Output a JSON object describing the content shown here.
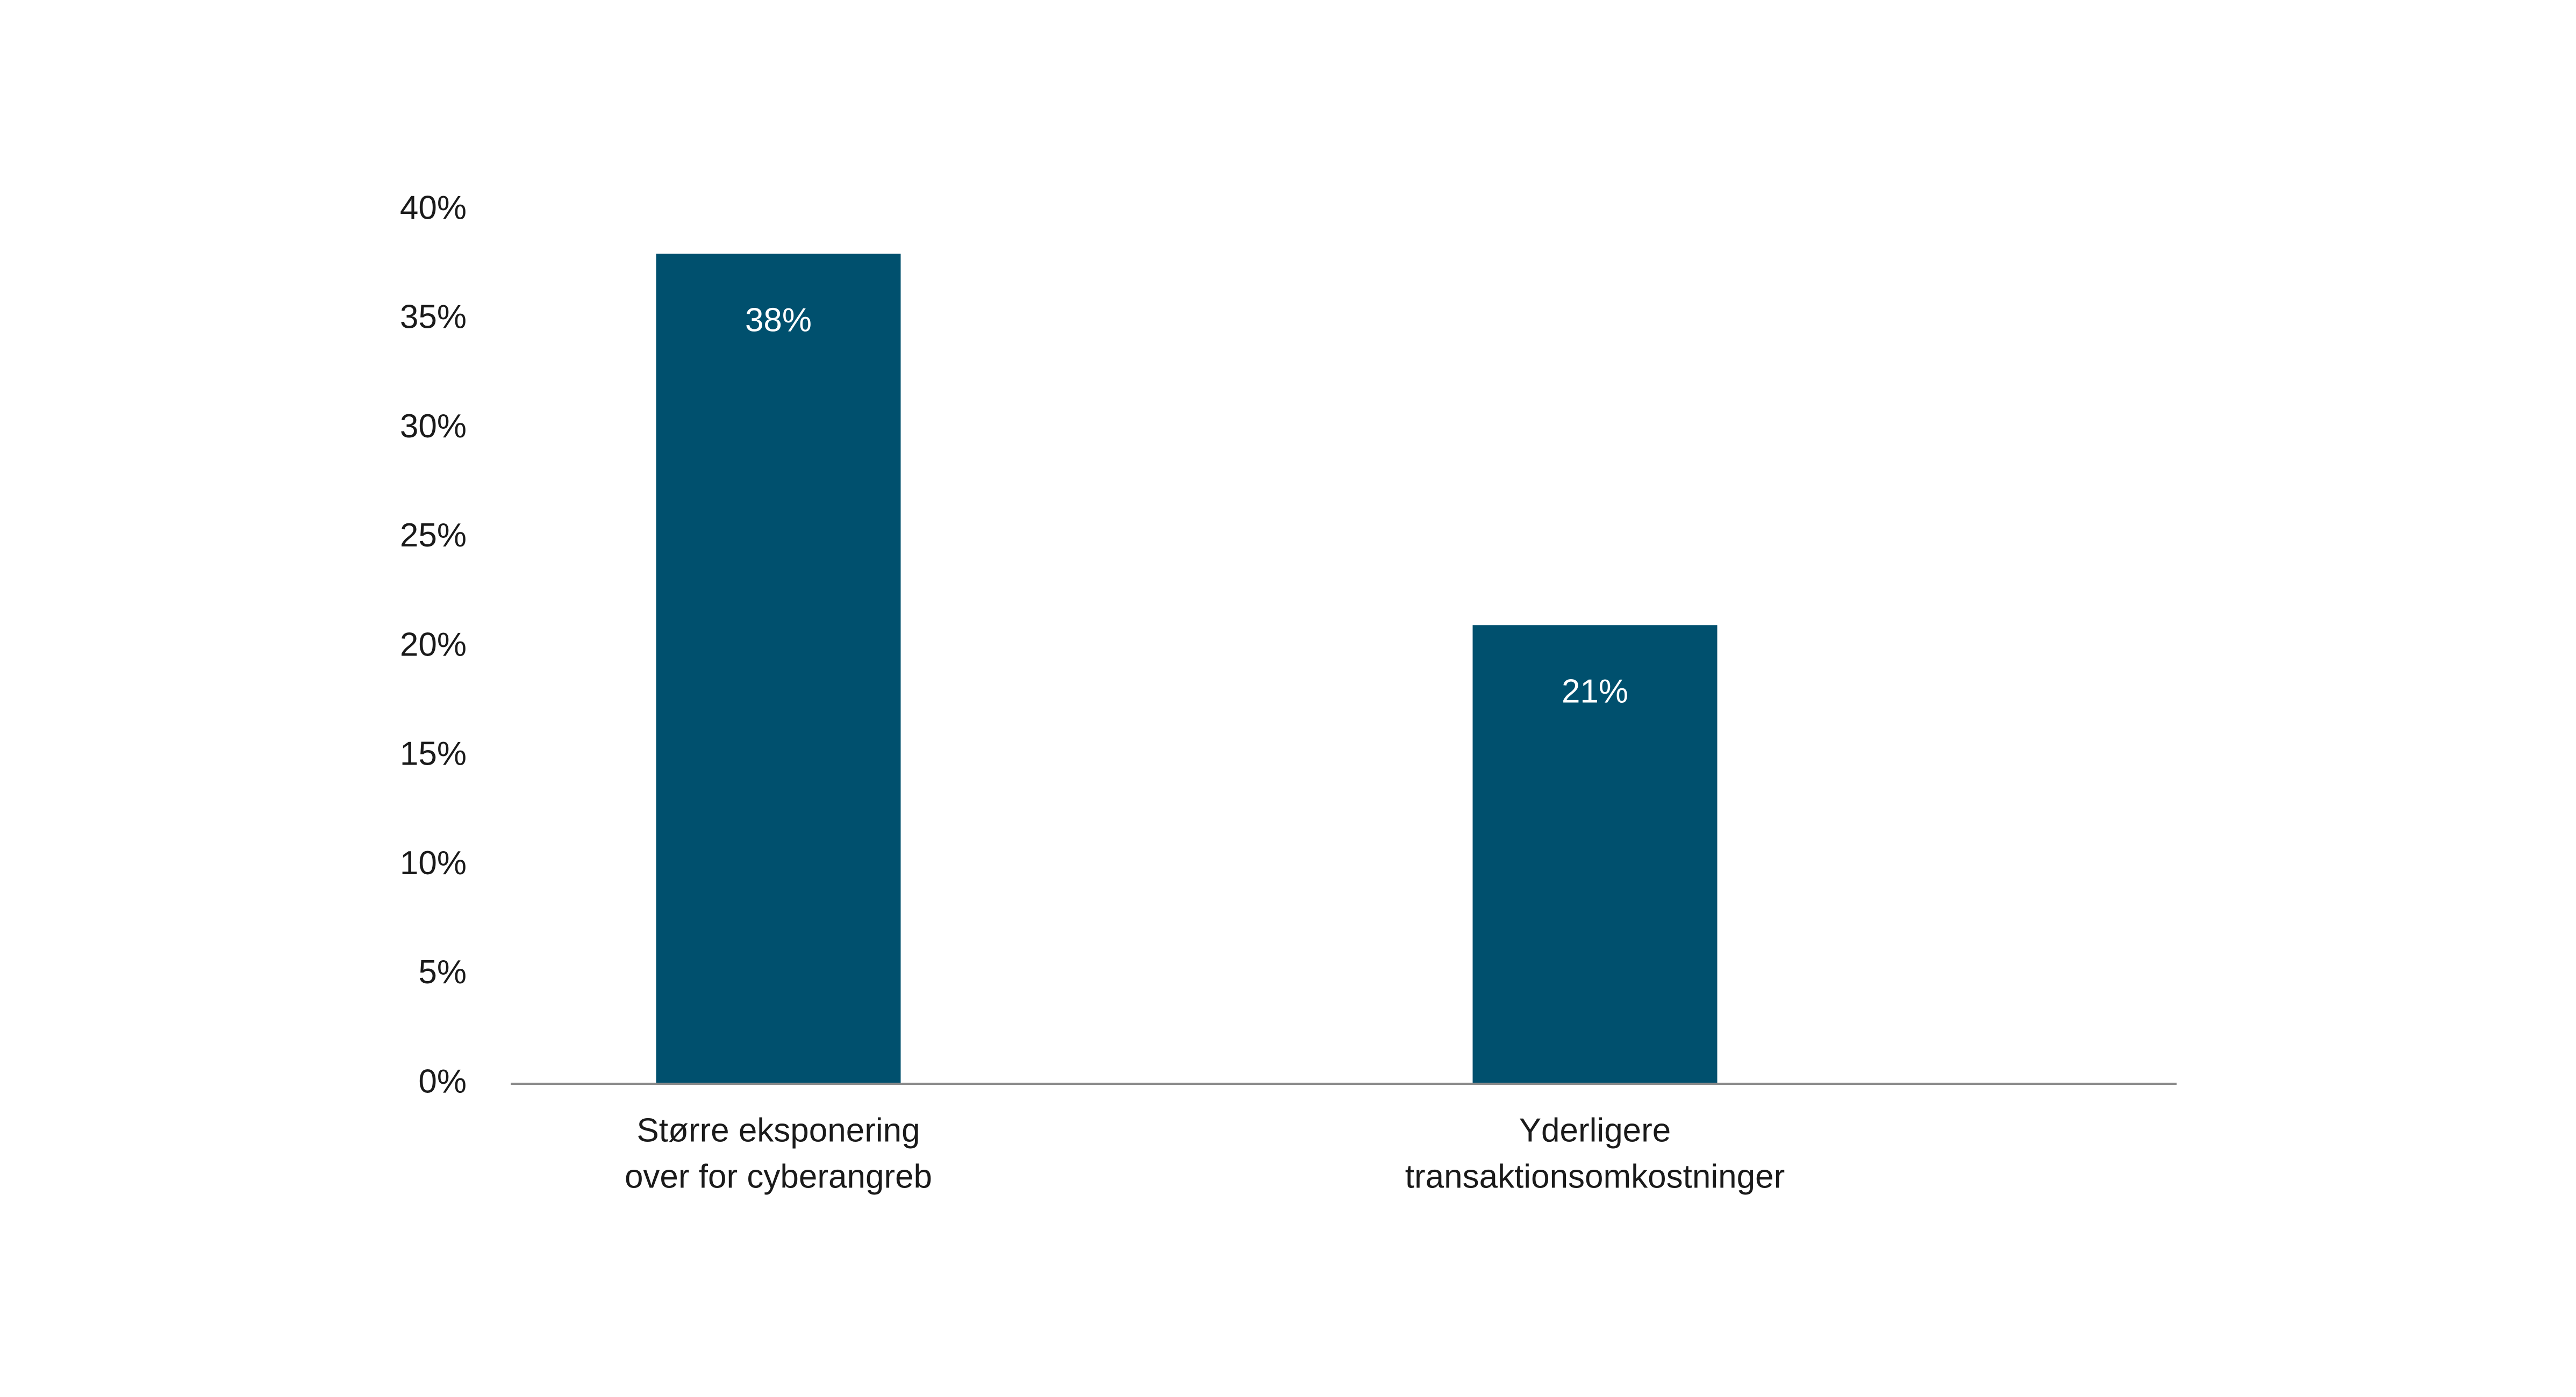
{
  "chart_data": {
    "type": "bar",
    "categories": [
      [
        "Større eksponering",
        "over for cyberangreb"
      ],
      [
        "Yderligere",
        "transaktionsomkostninger"
      ]
    ],
    "values": [
      38,
      21
    ],
    "value_labels": [
      "38%",
      "21%"
    ],
    "color": "#00506e",
    "ylim": [
      0,
      40
    ],
    "yticks": [
      {
        "value": 0,
        "label": "0%"
      },
      {
        "value": 5,
        "label": "5%"
      },
      {
        "value": 10,
        "label": "10%"
      },
      {
        "value": 15,
        "label": "15%"
      },
      {
        "value": 20,
        "label": "20%"
      },
      {
        "value": 25,
        "label": "25%"
      },
      {
        "value": 30,
        "label": "30%"
      },
      {
        "value": 35,
        "label": "35%"
      },
      {
        "value": 40,
        "label": "40%"
      }
    ],
    "grid": false
  }
}
